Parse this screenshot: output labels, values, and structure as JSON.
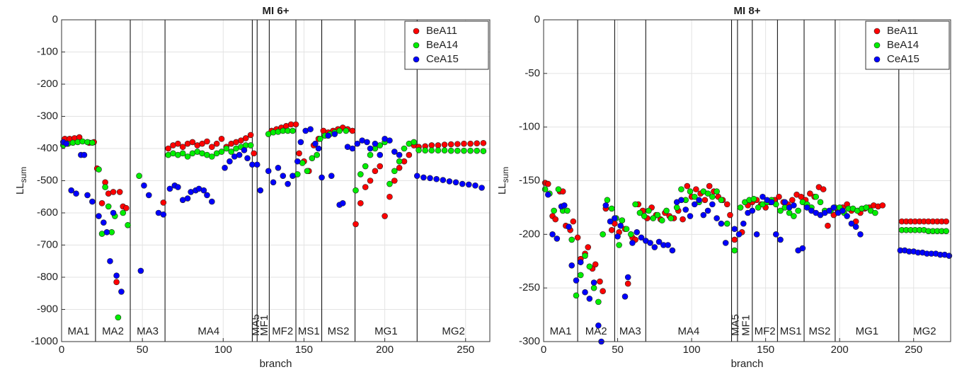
{
  "chart_data": [
    {
      "type": "scatter",
      "title": "MI 6+",
      "xlabel": "branch",
      "ylabel": "LL",
      "ylabel_subscript": "sum",
      "xlim": [
        0,
        265
      ],
      "ylim": [
        -1000,
        0
      ],
      "xticks": [
        0,
        50,
        100,
        150,
        200,
        250
      ],
      "yticks": [
        -1000,
        -900,
        -800,
        -700,
        -600,
        -500,
        -400,
        -300,
        -200,
        -100,
        0
      ],
      "grid": true,
      "legend": "northeast",
      "vlines": [
        21,
        42.5,
        64,
        118,
        121,
        128.5,
        145,
        161,
        181.6,
        220
      ],
      "region_labels": [
        "MA1",
        "MA2",
        "MA3",
        "MA4",
        "MA5",
        "MF1",
        "MF2",
        "MS1",
        "MS2",
        "MG1",
        "MG2"
      ],
      "series": [
        {
          "name": "BeA11",
          "color": "#ff0000",
          "x": [
            2,
            5,
            8,
            11,
            17,
            20,
            22,
            25,
            27,
            29,
            32,
            34,
            36,
            38,
            40,
            63,
            66,
            69,
            72,
            75,
            78,
            81,
            84,
            87,
            90,
            93,
            96,
            99,
            102,
            105,
            108,
            111,
            114,
            117,
            119,
            130,
            133,
            136,
            139,
            142,
            145,
            147,
            150,
            153,
            156,
            159,
            162,
            165,
            168,
            171,
            174,
            177,
            180,
            182,
            185,
            188,
            191,
            194,
            197,
            200,
            203,
            206,
            209,
            212,
            215,
            218,
            221,
            225,
            229,
            233,
            237,
            241,
            245,
            249,
            253,
            257,
            261
          ],
          "values": [
            -370,
            -370,
            -368,
            -365,
            -382,
            -380,
            -462,
            -570,
            -505,
            -540,
            -535,
            -815,
            -535,
            -580,
            -585,
            -568,
            -400,
            -390,
            -385,
            -395,
            -385,
            -380,
            -390,
            -385,
            -378,
            -395,
            -385,
            -370,
            -395,
            -385,
            -380,
            -375,
            -368,
            -358,
            -415,
            -345,
            -340,
            -335,
            -330,
            -325,
            -325,
            -415,
            -440,
            -470,
            -390,
            -370,
            -345,
            -350,
            -345,
            -340,
            -335,
            -340,
            -345,
            -635,
            -570,
            -520,
            -500,
            -470,
            -455,
            -610,
            -550,
            -500,
            -460,
            -440,
            -420,
            -390,
            -395,
            -393,
            -390,
            -390,
            -388,
            -387,
            -386,
            -385,
            -385,
            -384,
            -383
          ]
        },
        {
          "name": "BeA14",
          "color": "#00ee00",
          "x": [
            1,
            4,
            7,
            10,
            13,
            16,
            19,
            23,
            25,
            27,
            29,
            31,
            33,
            35,
            38,
            41,
            48,
            66,
            69,
            72,
            75,
            78,
            81,
            84,
            87,
            90,
            93,
            96,
            99,
            102,
            105,
            108,
            111,
            114,
            117,
            128,
            131,
            134,
            137,
            140,
            143,
            146,
            149,
            152,
            155,
            158,
            160,
            163,
            166,
            169,
            172,
            176,
            182,
            185,
            188,
            191,
            194,
            197,
            200,
            203,
            206,
            209,
            212,
            215,
            218,
            221,
            225,
            229,
            233,
            237,
            241,
            245,
            249,
            253,
            257,
            261
          ],
          "values": [
            -390,
            -385,
            -382,
            -380,
            -378,
            -380,
            -382,
            -465,
            -665,
            -520,
            -580,
            -660,
            -610,
            -925,
            -600,
            -638,
            -485,
            -420,
            -415,
            -420,
            -415,
            -425,
            -415,
            -410,
            -415,
            -420,
            -425,
            -415,
            -410,
            -400,
            -410,
            -400,
            -395,
            -390,
            -390,
            -355,
            -350,
            -348,
            -345,
            -345,
            -345,
            -480,
            -445,
            -470,
            -430,
            -420,
            -370,
            -360,
            -355,
            -350,
            -345,
            -345,
            -530,
            -480,
            -455,
            -420,
            -400,
            -390,
            -380,
            -510,
            -470,
            -440,
            -400,
            -385,
            -380,
            -405,
            -406,
            -406,
            -406,
            -406,
            -407,
            -407,
            -407,
            -407,
            -407,
            -408
          ]
        },
        {
          "name": "CeA15",
          "color": "#0000ff",
          "x": [
            1,
            3,
            6,
            9,
            12,
            14,
            16,
            19,
            23,
            26,
            28,
            30,
            32,
            34,
            37,
            49,
            51,
            54,
            60,
            63,
            67,
            70,
            72,
            75,
            78,
            80,
            83,
            85,
            88,
            90,
            93,
            101,
            104,
            107,
            110,
            113,
            115,
            118,
            121,
            123,
            128,
            131,
            134,
            137,
            140,
            143,
            146,
            148,
            151,
            154,
            157,
            159,
            161,
            165,
            167,
            169,
            172,
            174,
            177,
            180,
            183,
            186,
            189,
            191,
            194,
            197,
            200,
            203,
            206,
            209,
            220,
            224,
            228,
            232,
            236,
            240,
            244,
            248,
            252,
            256,
            260
          ],
          "values": [
            -380,
            -385,
            -530,
            -540,
            -420,
            -420,
            -545,
            -565,
            -610,
            -630,
            -660,
            -750,
            -600,
            -795,
            -845,
            -780,
            -515,
            -545,
            -600,
            -605,
            -525,
            -515,
            -520,
            -560,
            -555,
            -535,
            -530,
            -525,
            -530,
            -545,
            -565,
            -460,
            -440,
            -425,
            -420,
            -405,
            -430,
            -450,
            -450,
            -530,
            -470,
            -505,
            -460,
            -485,
            -510,
            -485,
            -440,
            -380,
            -345,
            -340,
            -385,
            -400,
            -490,
            -360,
            -485,
            -355,
            -575,
            -570,
            -395,
            -400,
            -385,
            -375,
            -380,
            -400,
            -385,
            -420,
            -370,
            -375,
            -410,
            -420,
            -485,
            -490,
            -492,
            -495,
            -498,
            -502,
            -505,
            -510,
            -512,
            -515,
            -522
          ]
        }
      ]
    },
    {
      "type": "scatter",
      "title": "MI 8+",
      "xlabel": "branch",
      "ylabel": "LL",
      "ylabel_subscript": "sum",
      "xlim": [
        0,
        275
      ],
      "ylim": [
        -300,
        0
      ],
      "xticks": [
        0,
        50,
        100,
        150,
        200,
        250
      ],
      "yticks": [
        -300,
        -250,
        -200,
        -150,
        -100,
        -50,
        0
      ],
      "grid": true,
      "legend": "northeast",
      "vlines": [
        23,
        48,
        69,
        127,
        131,
        141,
        158,
        176,
        197,
        240
      ],
      "region_labels": [
        "MA1",
        "MA2",
        "MA3",
        "MA4",
        "MA5",
        "MF1",
        "MF2",
        "MS1",
        "MS2",
        "MG1",
        "MG2"
      ],
      "series": [
        {
          "name": "BeA11",
          "color": "#ff0000",
          "x": [
            1,
            3,
            6,
            8,
            11,
            13,
            15,
            18,
            20,
            23,
            25,
            28,
            30,
            33,
            35,
            38,
            40,
            42,
            46,
            48,
            51,
            53,
            55,
            57,
            60,
            62,
            64,
            67,
            70,
            73,
            76,
            79,
            82,
            85,
            88,
            91,
            94,
            97,
            100,
            103,
            106,
            109,
            112,
            115,
            118,
            121,
            124,
            126,
            129,
            134,
            138,
            141,
            144,
            147,
            150,
            153,
            156,
            159,
            162,
            165,
            168,
            171,
            174,
            177,
            180,
            183,
            186,
            189,
            192,
            196,
            199,
            202,
            205,
            208,
            211,
            214,
            217,
            220,
            223,
            226,
            229,
            242,
            245,
            248,
            251,
            254,
            257,
            260,
            263,
            266,
            269,
            272
          ],
          "values": [
            -152,
            -153,
            -183,
            -186,
            -160,
            -160,
            -192,
            -196,
            -188,
            -203,
            -223,
            -218,
            -212,
            -232,
            -228,
            -244,
            -253,
            -176,
            -196,
            -190,
            -198,
            -187,
            -195,
            -246,
            -203,
            -205,
            -172,
            -178,
            -185,
            -175,
            -182,
            -186,
            -180,
            -183,
            -185,
            -178,
            -186,
            -155,
            -165,
            -158,
            -162,
            -168,
            -155,
            -160,
            -165,
            -168,
            -172,
            -182,
            -205,
            -198,
            -173,
            -170,
            -168,
            -172,
            -175,
            -170,
            -168,
            -165,
            -170,
            -172,
            -168,
            -163,
            -165,
            -168,
            -162,
            -165,
            -156,
            -158,
            -192,
            -182,
            -177,
            -175,
            -172,
            -178,
            -188,
            -180,
            -176,
            -175,
            -173,
            -174,
            -173,
            -188,
            -188,
            -188,
            -188,
            -188,
            -188,
            -188,
            -188,
            -188,
            -188,
            -188
          ]
        },
        {
          "name": "BeA14",
          "color": "#00ee00",
          "x": [
            1,
            4,
            7,
            10,
            13,
            16,
            19,
            22,
            25,
            28,
            31,
            34,
            37,
            40,
            43,
            46,
            49,
            51,
            53,
            56,
            59,
            62,
            65,
            68,
            71,
            74,
            77,
            80,
            83,
            86,
            90,
            93,
            96,
            99,
            102,
            105,
            108,
            111,
            114,
            117,
            120,
            124,
            129,
            133,
            136,
            139,
            142,
            145,
            148,
            151,
            154,
            157,
            160,
            163,
            166,
            169,
            172,
            175,
            178,
            181,
            184,
            187,
            190,
            194,
            197,
            200,
            203,
            206,
            209,
            212,
            215,
            218,
            221,
            224,
            242,
            245,
            248,
            251,
            254,
            257,
            260,
            263,
            266,
            269,
            272
          ],
          "values": [
            -158,
            -162,
            -178,
            -158,
            -178,
            -178,
            -205,
            -257,
            -238,
            -220,
            -230,
            -250,
            -263,
            -200,
            -168,
            -176,
            -185,
            -210,
            -187,
            -195,
            -200,
            -172,
            -180,
            -183,
            -178,
            -185,
            -182,
            -187,
            -178,
            -185,
            -175,
            -158,
            -168,
            -160,
            -165,
            -170,
            -160,
            -162,
            -165,
            -160,
            -168,
            -190,
            -215,
            -175,
            -170,
            -168,
            -167,
            -175,
            -172,
            -170,
            -168,
            -172,
            -178,
            -175,
            -180,
            -183,
            -178,
            -170,
            -172,
            -175,
            -165,
            -170,
            -178,
            -178,
            -175,
            -175,
            -180,
            -176,
            -176,
            -178,
            -176,
            -175,
            -178,
            -180,
            -196,
            -196,
            -196,
            -196,
            -196,
            -196,
            -197,
            -197,
            -197,
            -197,
            -197
          ]
        },
        {
          "name": "CeA15",
          "color": "#0000ff",
          "x": [
            3,
            6,
            9,
            12,
            14,
            17,
            19,
            22,
            25,
            28,
            31,
            34,
            37,
            39,
            42,
            45,
            48,
            50,
            52,
            55,
            57,
            60,
            63,
            66,
            69,
            72,
            75,
            78,
            81,
            84,
            87,
            90,
            93,
            96,
            99,
            102,
            105,
            108,
            111,
            114,
            117,
            120,
            123,
            129,
            132,
            135,
            138,
            141,
            144,
            148,
            151,
            154,
            157,
            160,
            163,
            166,
            169,
            172,
            175,
            178,
            181,
            184,
            187,
            190,
            193,
            196,
            199,
            202,
            205,
            208,
            211,
            214,
            241,
            244,
            247,
            250,
            253,
            256,
            259,
            262,
            265,
            268,
            271,
            274
          ],
          "values": [
            -163,
            -200,
            -204,
            -174,
            -173,
            -193,
            -229,
            -243,
            -226,
            -254,
            -260,
            -245,
            -285,
            -300,
            -173,
            -188,
            -185,
            -202,
            -192,
            -258,
            -240,
            -208,
            -198,
            -203,
            -206,
            -208,
            -212,
            -207,
            -210,
            -210,
            -215,
            -170,
            -168,
            -177,
            -183,
            -172,
            -168,
            -182,
            -178,
            -172,
            -185,
            -190,
            -208,
            -195,
            -200,
            -190,
            -180,
            -178,
            -200,
            -165,
            -168,
            -170,
            -200,
            -205,
            -170,
            -175,
            -173,
            -215,
            -213,
            -175,
            -178,
            -180,
            -182,
            -180,
            -178,
            -175,
            -180,
            -178,
            -183,
            -190,
            -193,
            -200,
            -215,
            -215,
            -216,
            -216,
            -217,
            -217,
            -218,
            -218,
            -218,
            -219,
            -219,
            -220
          ]
        }
      ]
    }
  ]
}
